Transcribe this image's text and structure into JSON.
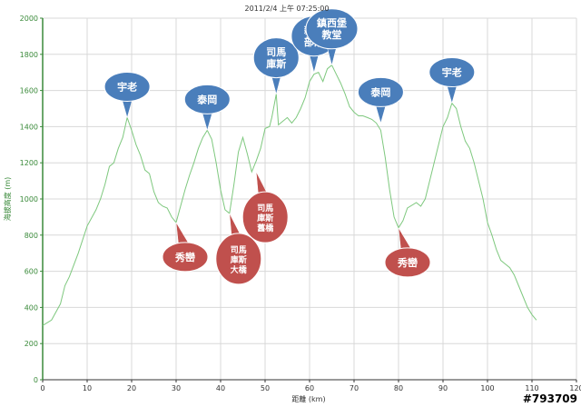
{
  "chart_data": {
    "type": "line",
    "title": "2011/2/4 上午 07:25:00",
    "xlabel": "距離 (km)",
    "ylabel": "海拔高度 (m)",
    "xlim": [
      0,
      120
    ],
    "ylim": [
      0,
      2000
    ],
    "x_ticks": [
      0,
      10,
      20,
      30,
      40,
      50,
      60,
      70,
      80,
      90,
      100,
      110,
      120
    ],
    "y_ticks": [
      0,
      200,
      400,
      600,
      800,
      1000,
      1200,
      1400,
      1600,
      1800,
      2000
    ],
    "grid": true,
    "colors": {
      "line": "#7ec87e",
      "y_axis": "#3a8a3a",
      "blue_callout": "#4a7ebb",
      "red_callout": "#c0504d"
    },
    "series": [
      {
        "points": [
          [
            0,
            300
          ],
          [
            2,
            330
          ],
          [
            4,
            420
          ],
          [
            5,
            520
          ],
          [
            6,
            570
          ],
          [
            8,
            700
          ],
          [
            10,
            850
          ],
          [
            12,
            940
          ],
          [
            13,
            1000
          ],
          [
            14,
            1080
          ],
          [
            15,
            1180
          ],
          [
            16,
            1200
          ],
          [
            17,
            1280
          ],
          [
            18,
            1340
          ],
          [
            19,
            1450
          ],
          [
            20,
            1380
          ],
          [
            21,
            1300
          ],
          [
            22,
            1240
          ],
          [
            23,
            1160
          ],
          [
            24,
            1140
          ],
          [
            25,
            1040
          ],
          [
            26,
            980
          ],
          [
            27,
            960
          ],
          [
            28,
            950
          ],
          [
            29,
            900
          ],
          [
            30,
            870
          ],
          [
            31,
            960
          ],
          [
            32,
            1050
          ],
          [
            33,
            1130
          ],
          [
            34,
            1200
          ],
          [
            35,
            1280
          ],
          [
            36,
            1340
          ],
          [
            37,
            1380
          ],
          [
            38,
            1330
          ],
          [
            39,
            1200
          ],
          [
            40,
            1050
          ],
          [
            41,
            940
          ],
          [
            42,
            920
          ],
          [
            43,
            1080
          ],
          [
            44,
            1260
          ],
          [
            45,
            1340
          ],
          [
            46,
            1250
          ],
          [
            47,
            1150
          ],
          [
            48,
            1210
          ],
          [
            49,
            1280
          ],
          [
            50,
            1390
          ],
          [
            51,
            1400
          ],
          [
            51.5,
            1450
          ],
          [
            52.5,
            1580
          ],
          [
            53,
            1410
          ],
          [
            54,
            1430
          ],
          [
            55,
            1450
          ],
          [
            56,
            1420
          ],
          [
            57,
            1450
          ],
          [
            58,
            1500
          ],
          [
            59,
            1560
          ],
          [
            60,
            1650
          ],
          [
            61,
            1690
          ],
          [
            62,
            1700
          ],
          [
            63,
            1650
          ],
          [
            64,
            1720
          ],
          [
            65,
            1740
          ],
          [
            66,
            1690
          ],
          [
            67,
            1640
          ],
          [
            68,
            1580
          ],
          [
            69,
            1510
          ],
          [
            70,
            1480
          ],
          [
            71,
            1460
          ],
          [
            72,
            1460
          ],
          [
            73,
            1450
          ],
          [
            74,
            1440
          ],
          [
            75,
            1420
          ],
          [
            76,
            1380
          ],
          [
            77,
            1230
          ],
          [
            78,
            1050
          ],
          [
            79,
            900
          ],
          [
            80,
            840
          ],
          [
            81,
            880
          ],
          [
            82,
            950
          ],
          [
            84,
            980
          ],
          [
            85,
            960
          ],
          [
            86,
            1000
          ],
          [
            87,
            1100
          ],
          [
            88,
            1200
          ],
          [
            89,
            1300
          ],
          [
            90,
            1400
          ],
          [
            91,
            1450
          ],
          [
            92,
            1530
          ],
          [
            93,
            1500
          ],
          [
            94,
            1400
          ],
          [
            95,
            1320
          ],
          [
            96,
            1280
          ],
          [
            97,
            1200
          ],
          [
            98,
            1100
          ],
          [
            99,
            1000
          ],
          [
            100,
            870
          ],
          [
            101,
            800
          ],
          [
            102,
            720
          ],
          [
            103,
            660
          ],
          [
            104,
            640
          ],
          [
            105,
            620
          ],
          [
            106,
            580
          ],
          [
            107,
            520
          ],
          [
            108,
            460
          ],
          [
            109,
            400
          ],
          [
            110,
            360
          ],
          [
            111,
            330
          ]
        ]
      }
    ],
    "annotations": [
      {
        "lines": [
          "宇老"
        ],
        "color": "blue",
        "x": 19,
        "y": 1450
      },
      {
        "lines": [
          "秀巒"
        ],
        "color": "red",
        "x": 30,
        "y": 870
      },
      {
        "lines": [
          "泰岡"
        ],
        "color": "blue",
        "x": 37,
        "y": 1380
      },
      {
        "lines": [
          "司馬",
          "庫斯",
          "大橋"
        ],
        "color": "red",
        "x": 42,
        "y": 920
      },
      {
        "lines": [
          "司馬",
          "庫斯",
          "舊橋"
        ],
        "color": "red",
        "x": 48,
        "y": 1150
      },
      {
        "lines": [
          "司馬",
          "庫斯"
        ],
        "color": "blue",
        "x": 52.5,
        "y": 1580
      },
      {
        "lines": [
          "新光",
          "部落"
        ],
        "color": "blue",
        "x": 61,
        "y": 1700
      },
      {
        "lines": [
          "鎮西堡",
          "教堂"
        ],
        "color": "blue",
        "x": 65,
        "y": 1740
      },
      {
        "lines": [
          "泰岡"
        ],
        "color": "blue",
        "x": 76,
        "y": 1420
      },
      {
        "lines": [
          "秀巒"
        ],
        "color": "red",
        "x": 80,
        "y": 840
      },
      {
        "lines": [
          "宇老"
        ],
        "color": "blue",
        "x": 92,
        "y": 1530
      }
    ]
  },
  "watermark": "#793709"
}
